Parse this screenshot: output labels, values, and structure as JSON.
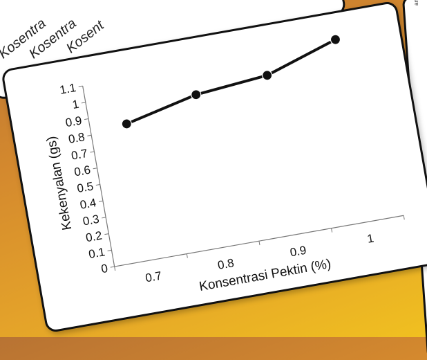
{
  "background": {
    "top_labels": [
      "Kosentra",
      "Kosentra",
      "Kosent"
    ],
    "right_label": "an (gs)"
  },
  "chart_data": {
    "type": "line",
    "title": "",
    "xlabel": "Konsentrasi Pektin (%)",
    "ylabel": "Kekenyalan (gs)",
    "x_tick_labels": [
      "0.7",
      "0.8",
      "0.9",
      "1"
    ],
    "y_tick_labels": [
      "0",
      "0.1",
      "0.2",
      "0.3",
      "0.4",
      "0.5",
      "0.6",
      "0.7",
      "0.8",
      "0.9",
      "1",
      "1.1"
    ],
    "ylim": [
      0,
      1.1
    ],
    "grid": false,
    "series": [
      {
        "x": [
          "0.7",
          "0.8",
          "0.9",
          "1"
        ],
        "values": [
          0.83,
          0.93,
          0.97,
          1.11
        ]
      }
    ],
    "colors": {
      "line": "#111111",
      "marker": "#111111"
    }
  }
}
